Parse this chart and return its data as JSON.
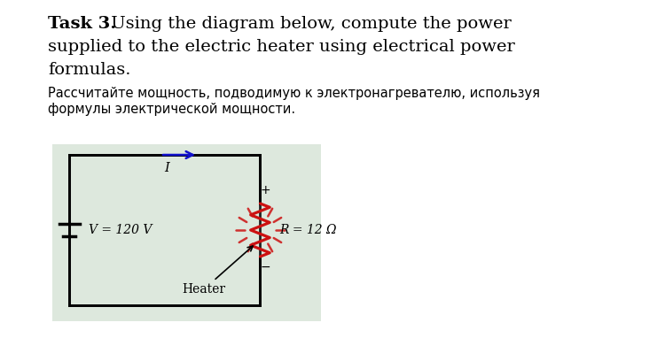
{
  "title_bold": "Task 3.",
  "title_rest_line1": " Using the diagram below, compute the power",
  "title_line2": "supplied to the electric heater using electrical power",
  "title_line3": "formulas.",
  "subtitle_line1": "Рассчитайте мощность, подводимую к электронагревателю, используя",
  "subtitle_line2": "формулы электрической мощности.",
  "voltage_label": "V = 120 V",
  "resistance_label": "R = 12 Ω",
  "heater_label": "Heater",
  "current_label": "I",
  "plus_label": "+",
  "minus_label": "−",
  "bg_color": "#ffffff",
  "circuit_bg": "#dde8dd",
  "circuit_border": "#222222",
  "wire_color": "#000000",
  "resistor_color": "#cc1111",
  "battery_color": "#000000",
  "arrow_color": "#1111cc",
  "text_color": "#000000",
  "title_fontsize": 14,
  "sub_fontsize": 10.5,
  "circuit_label_fontsize": 10
}
